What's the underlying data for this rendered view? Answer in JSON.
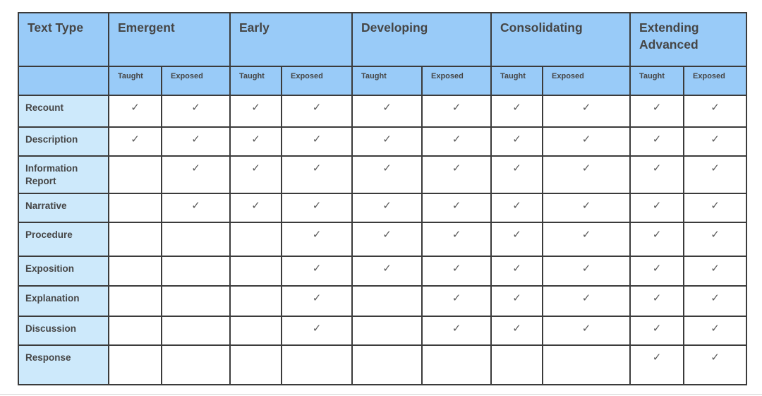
{
  "colors": {
    "header_bg": "#99cbf8",
    "row_header_bg": "#cde9fb",
    "border": "#3b3b3b",
    "header_text": "#464646",
    "check": "#595959"
  },
  "table": {
    "corner_label": "Text Type",
    "stages": [
      "Emergent",
      "Early",
      "Developing",
      "Consolidating",
      "Extending Advanced"
    ],
    "sub_headers": [
      "Taught",
      "Exposed"
    ],
    "check_glyph": "✓",
    "rows": [
      {
        "label": "Recount",
        "checks": [
          1,
          1,
          1,
          1,
          1,
          1,
          1,
          1,
          1,
          1
        ]
      },
      {
        "label": "Description",
        "checks": [
          1,
          1,
          1,
          1,
          1,
          1,
          1,
          1,
          1,
          1
        ]
      },
      {
        "label": "Information Report",
        "checks": [
          0,
          1,
          1,
          1,
          1,
          1,
          1,
          1,
          1,
          1
        ]
      },
      {
        "label": "Narrative",
        "checks": [
          0,
          1,
          1,
          1,
          1,
          1,
          1,
          1,
          1,
          1
        ]
      },
      {
        "label": "Procedure",
        "checks": [
          0,
          0,
          0,
          1,
          1,
          1,
          1,
          1,
          1,
          1
        ]
      },
      {
        "label": "Exposition",
        "checks": [
          0,
          0,
          0,
          1,
          1,
          1,
          1,
          1,
          1,
          1
        ]
      },
      {
        "label": "Explanation",
        "checks": [
          0,
          0,
          0,
          1,
          0,
          1,
          1,
          1,
          1,
          1
        ]
      },
      {
        "label": "Discussion",
        "checks": [
          0,
          0,
          0,
          1,
          0,
          1,
          1,
          1,
          1,
          1
        ]
      },
      {
        "label": "Response",
        "checks": [
          0,
          0,
          0,
          0,
          0,
          0,
          0,
          0,
          1,
          1
        ]
      }
    ]
  }
}
